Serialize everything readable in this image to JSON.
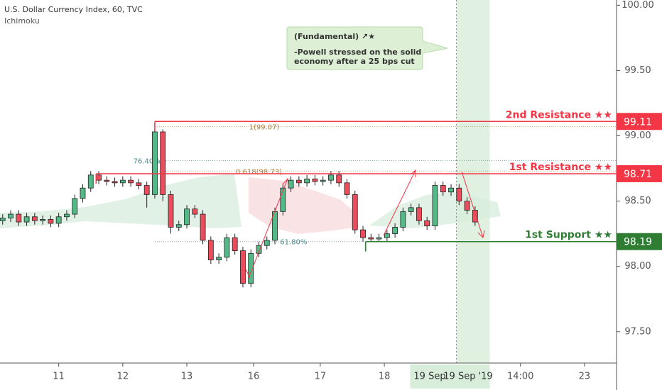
{
  "chart_data": {
    "type": "candlestick",
    "title": "U.S. Dollar Currency Index, 60, TVC",
    "subtitle": "Ichimoku",
    "xlim": [
      -22,
      209
    ],
    "ylim": [
      97.26,
      100.04
    ],
    "xticks": [
      {
        "value": 0,
        "label": "11"
      },
      {
        "value": 24,
        "label": "12"
      },
      {
        "value": 48,
        "label": "13"
      },
      {
        "value": 73,
        "label": "16"
      },
      {
        "value": 98,
        "label": "17"
      },
      {
        "value": 122,
        "label": "18"
      },
      {
        "value": 173,
        "label": "14:00"
      },
      {
        "value": 197,
        "label": "23"
      }
    ],
    "yticks": [
      {
        "value": 100,
        "label": "100.00"
      },
      {
        "value": 99.5,
        "label": "99.50"
      },
      {
        "value": 99,
        "label": "99.00"
      },
      {
        "value": 98.5,
        "label": "98.50"
      },
      {
        "value": 98,
        "label": "98.00"
      },
      {
        "value": 97.5,
        "label": "97.50"
      }
    ],
    "up_color": "#53b987",
    "down_color": "#eb4d5c",
    "highlight": [
      149,
      161.5
    ],
    "highlight_labels": [
      "19 Sep",
      "19 Sep '19"
    ],
    "series": [
      {
        "x": [
          -21,
          -18,
          -15,
          -12,
          -9,
          -6,
          -3,
          0,
          3,
          6,
          9,
          12,
          15,
          18,
          21,
          24,
          27,
          30,
          33,
          36,
          39,
          42,
          45,
          48,
          51,
          54,
          57,
          60,
          63,
          66,
          69,
          72,
          75,
          78,
          81,
          84,
          87,
          90,
          93,
          96,
          99,
          102,
          105,
          108,
          111,
          114,
          117,
          120,
          123,
          126,
          129,
          132,
          135,
          138,
          141,
          144,
          147,
          150,
          153,
          156
        ],
        "open": [
          98.35,
          98.37,
          98.4,
          98.34,
          98.38,
          98.35,
          98.36,
          98.33,
          98.38,
          98.4,
          98.52,
          98.6,
          98.7,
          98.66,
          98.65,
          98.64,
          98.66,
          98.64,
          98.62,
          98.55,
          99.03,
          98.55,
          98.3,
          98.32,
          98.44,
          98.4,
          98.2,
          98.05,
          98.07,
          98.22,
          98.12,
          97.87,
          98.1,
          98.16,
          98.2,
          98.42,
          98.6,
          98.66,
          98.64,
          98.67,
          98.65,
          98.66,
          98.7,
          98.64,
          98.55,
          98.28,
          98.22,
          98.21,
          98.22,
          98.25,
          98.3,
          98.42,
          98.45,
          98.35,
          98.31,
          98.62,
          98.57,
          98.6,
          98.5,
          98.43
        ],
        "high": [
          98.4,
          98.43,
          98.43,
          98.41,
          98.41,
          98.39,
          98.39,
          98.41,
          98.43,
          98.55,
          98.63,
          98.73,
          98.73,
          98.69,
          98.68,
          98.69,
          98.69,
          98.67,
          98.65,
          99.09,
          99.05,
          98.58,
          98.35,
          98.47,
          98.47,
          98.43,
          98.23,
          98.1,
          98.25,
          98.25,
          98.15,
          98.13,
          98.19,
          98.23,
          98.45,
          98.63,
          98.69,
          98.69,
          98.7,
          98.7,
          98.69,
          98.73,
          98.73,
          98.67,
          98.58,
          98.31,
          98.25,
          98.25,
          98.28,
          98.33,
          98.45,
          98.48,
          98.48,
          98.38,
          98.65,
          98.65,
          98.63,
          98.63,
          98.53,
          98.46
        ],
        "low": [
          98.32,
          98.34,
          98.31,
          98.31,
          98.32,
          98.32,
          98.3,
          98.3,
          98.35,
          98.37,
          98.49,
          98.57,
          98.63,
          98.62,
          98.61,
          98.61,
          98.61,
          98.59,
          98.45,
          98.52,
          98.5,
          98.25,
          98.27,
          98.29,
          98.37,
          98.17,
          98.02,
          98.02,
          98.04,
          98.09,
          97.84,
          97.84,
          98.07,
          98.13,
          98.17,
          98.39,
          98.57,
          98.61,
          98.61,
          98.62,
          98.62,
          98.63,
          98.61,
          98.52,
          98.25,
          98.19,
          98.19,
          98.19,
          98.19,
          98.22,
          98.27,
          98.39,
          98.32,
          98.28,
          98.28,
          98.54,
          98.54,
          98.47,
          98.4,
          98.31
        ],
        "close": [
          98.37,
          98.4,
          98.34,
          98.38,
          98.35,
          98.36,
          98.33,
          98.38,
          98.4,
          98.52,
          98.6,
          98.7,
          98.66,
          98.65,
          98.64,
          98.66,
          98.64,
          98.62,
          98.55,
          99.03,
          98.55,
          98.3,
          98.32,
          98.44,
          98.4,
          98.2,
          98.05,
          98.07,
          98.22,
          98.12,
          97.87,
          98.1,
          98.16,
          98.2,
          98.42,
          98.6,
          98.66,
          98.64,
          98.67,
          98.65,
          98.66,
          98.7,
          98.64,
          98.55,
          98.28,
          98.22,
          98.21,
          98.22,
          98.25,
          98.3,
          98.42,
          98.45,
          98.35,
          98.31,
          98.62,
          98.57,
          98.6,
          98.5,
          98.43,
          98.34
        ]
      }
    ],
    "levels": [
      {
        "name": "2nd Resistance ★★",
        "value": 99.11,
        "start": 36,
        "color": "#f23645"
      },
      {
        "name": "1st Resistance ★★",
        "value": 98.71,
        "start": 14,
        "color": "#f23645"
      },
      {
        "name": "1st Support ★★",
        "value": 98.19,
        "start": 115,
        "color": "#2e7d32"
      }
    ],
    "annotations": [
      {
        "text": "1(99.07)",
        "x": 77,
        "y": 99.07,
        "color": "#b07a3a"
      },
      {
        "text": "76.40%",
        "x": 33,
        "y": 98.81,
        "color": "#4a8a8a"
      },
      {
        "text": "0.618(98.73)",
        "x": 75,
        "y": 98.73,
        "color": "#b07a3a"
      },
      {
        "text": "61.80%",
        "x": 88,
        "y": 98.19,
        "color": "#4a8a8a"
      }
    ],
    "note": [
      "(Fundamental) ↗★",
      "-Powell stressed on the solid",
      "economy after a 25 bps cut"
    ]
  }
}
